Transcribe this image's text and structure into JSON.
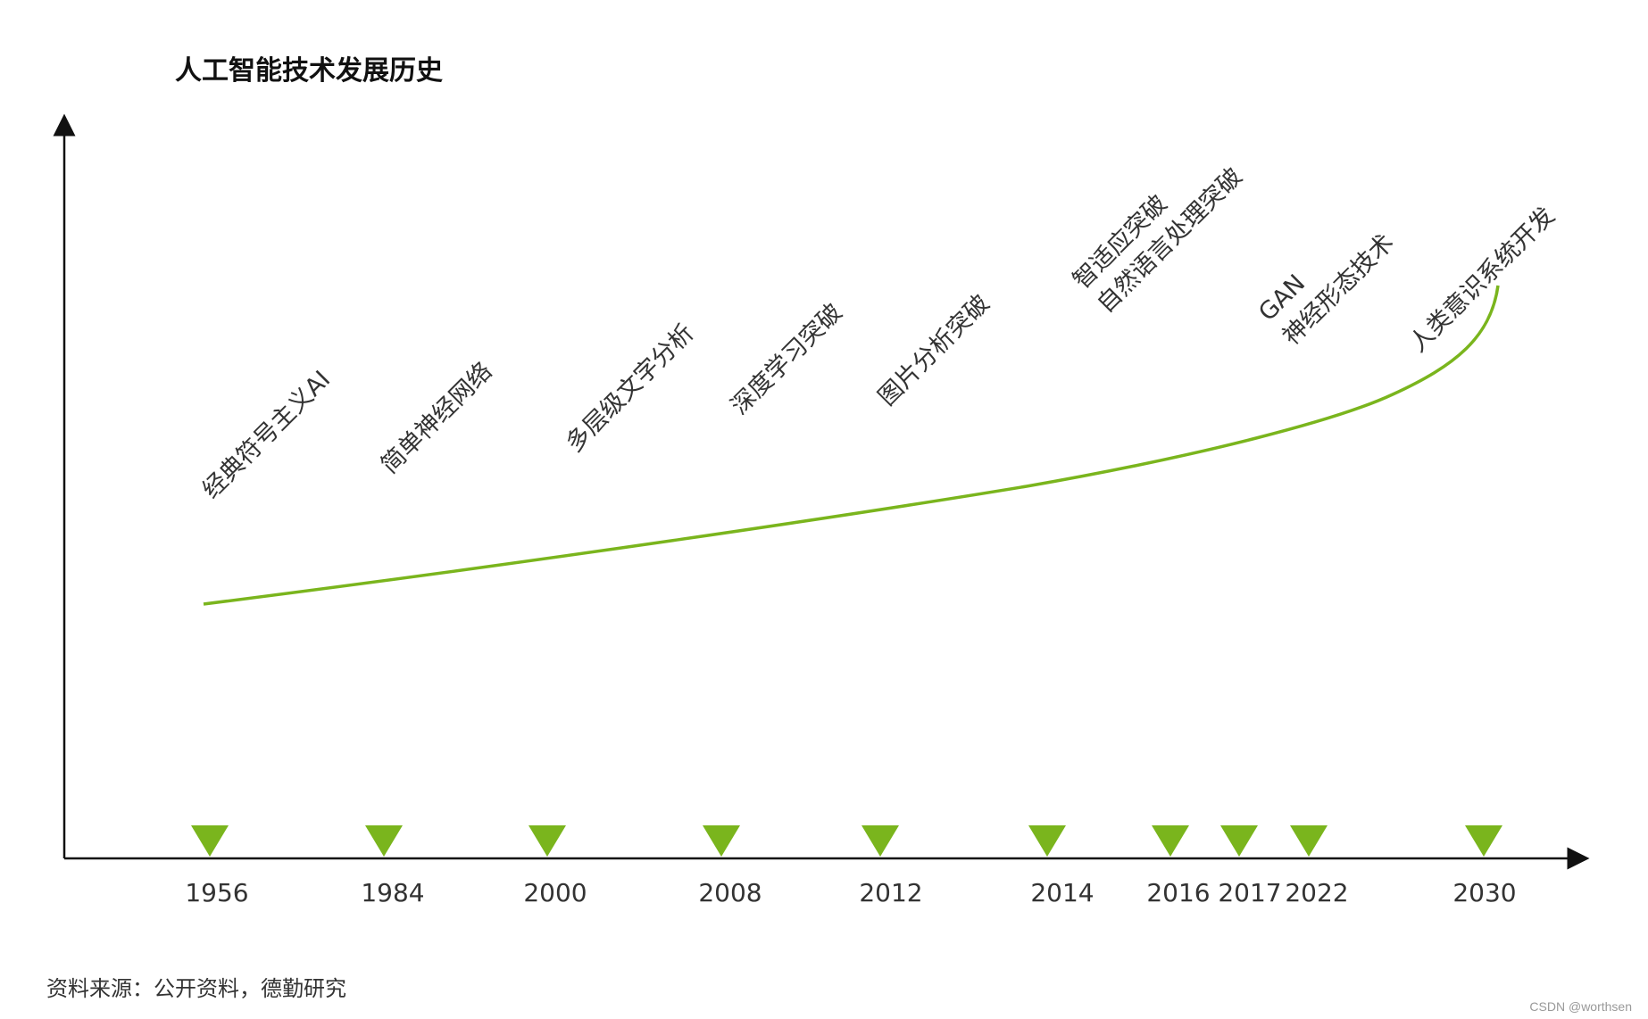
{
  "title": "人工智能技术发展历史",
  "source": "资料来源：公开资料，德勤研究",
  "watermark": "CSDN @worthsen",
  "colors": {
    "accent": "#7ab51d",
    "axis": "#111111"
  },
  "chart_data": {
    "type": "line",
    "title": "人工智能技术发展历史",
    "categories": [
      "1956",
      "1984",
      "2000",
      "2008",
      "2012",
      "2014",
      "2016",
      "2017",
      "2022",
      "2030"
    ],
    "events": [
      {
        "year": "1956",
        "lines": [
          "经典符号主义AI"
        ]
      },
      {
        "year": "1984",
        "lines": [
          "简单神经网络"
        ]
      },
      {
        "year": "2000",
        "lines": [
          "多层级文字分析"
        ]
      },
      {
        "year": "2008",
        "lines": [
          "深度学习突破"
        ]
      },
      {
        "year": "2012",
        "lines": [
          "图片分析突破"
        ]
      },
      {
        "year": "2014",
        "lines": [
          "智适应突破",
          "自然语言处理突破"
        ]
      },
      {
        "year": "2017",
        "lines": [
          "GAN",
          "神经形态技术"
        ]
      },
      {
        "year": "2030",
        "lines": [
          "人类意识系统开发"
        ]
      }
    ],
    "trend": "accelerating",
    "grid": false,
    "legend": "none"
  }
}
